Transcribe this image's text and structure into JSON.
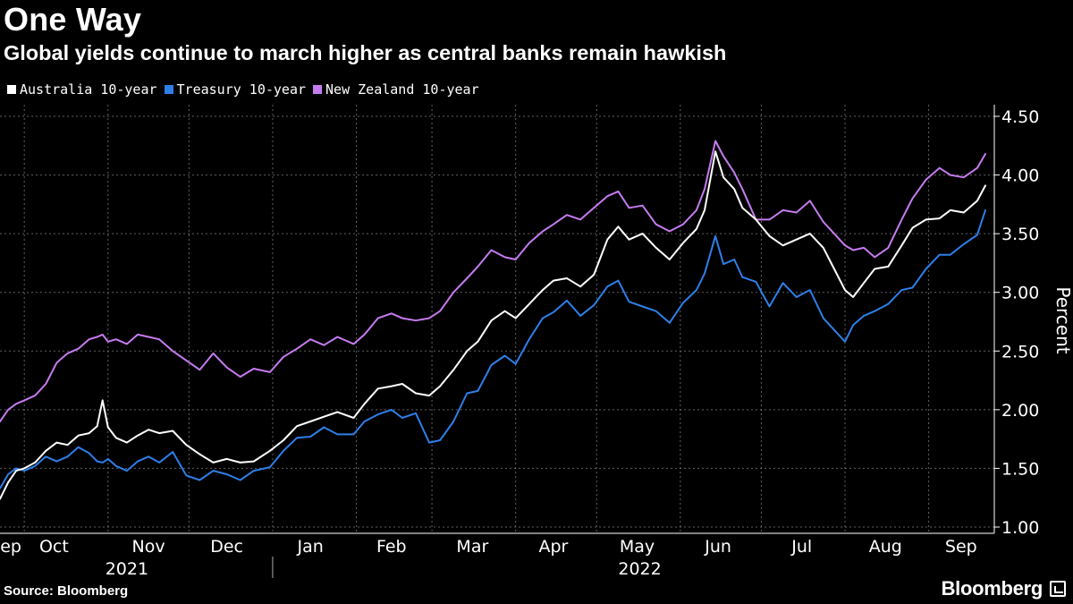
{
  "header": {
    "title": "One Way",
    "subtitle": "Global yields continue to march higher as central banks remain hawkish"
  },
  "footer": {
    "source": "Source: Bloomberg",
    "brand": "Bloomberg",
    "brand_icon": "bloomberg-terminal-icon"
  },
  "colors": {
    "background": "#000000",
    "australia": "#ffffff",
    "treasury": "#2e7fe8",
    "new_zealand": "#c67bf0",
    "grid": "#8a8a8a"
  },
  "chart_data": {
    "type": "line",
    "title": "One Way",
    "subtitle": "Global yields continue to march higher as central banks remain hawkish",
    "ylabel": "Percent",
    "xlabel": "",
    "ylim": [
      1.0,
      4.5
    ],
    "y_ticks": [
      "1.00",
      "1.50",
      "2.00",
      "2.50",
      "3.00",
      "3.50",
      "4.00",
      "4.50"
    ],
    "y_axis_side": "right",
    "grid": true,
    "legend_position": "top-left",
    "x_range": [
      "2021-09-22",
      "2022-09-22"
    ],
    "x_tick_labels": [
      "Sep",
      "Oct",
      "Nov",
      "Dec",
      "Jan",
      "Feb",
      "Mar",
      "Apr",
      "May",
      "Jun",
      "Jul",
      "Aug",
      "Sep"
    ],
    "x_year_labels": [
      {
        "label": "2021",
        "date": "2021-11-08"
      },
      {
        "label": "2022",
        "date": "2022-05-17"
      }
    ],
    "month_gridlines": [
      "2021-10-01",
      "2021-11-01",
      "2021-12-01",
      "2022-01-01",
      "2022-02-01",
      "2022-03-01",
      "2022-04-01",
      "2022-05-01",
      "2022-06-01",
      "2022-07-01",
      "2022-08-01",
      "2022-09-01"
    ],
    "x_tick_dates": [
      "2021-09-24",
      "2021-10-12",
      "2021-11-16",
      "2021-12-15",
      "2022-01-15",
      "2022-02-14",
      "2022-03-16",
      "2022-04-15",
      "2022-05-16",
      "2022-06-15",
      "2022-07-16",
      "2022-08-16",
      "2022-09-13"
    ],
    "year_divider_date": "2022-01-01",
    "series": [
      {
        "name": "Australia 10-year",
        "color": "#ffffff",
        "points": [
          [
            "2021-09-22",
            1.24
          ],
          [
            "2021-09-25",
            1.38
          ],
          [
            "2021-09-28",
            1.48
          ],
          [
            "2021-10-01",
            1.5
          ],
          [
            "2021-10-05",
            1.55
          ],
          [
            "2021-10-09",
            1.65
          ],
          [
            "2021-10-13",
            1.72
          ],
          [
            "2021-10-17",
            1.7
          ],
          [
            "2021-10-21",
            1.78
          ],
          [
            "2021-10-25",
            1.8
          ],
          [
            "2021-10-28",
            1.86
          ],
          [
            "2021-10-30",
            2.08
          ],
          [
            "2021-11-01",
            1.85
          ],
          [
            "2021-11-04",
            1.76
          ],
          [
            "2021-11-08",
            1.72
          ],
          [
            "2021-11-12",
            1.78
          ],
          [
            "2021-11-16",
            1.83
          ],
          [
            "2021-11-20",
            1.8
          ],
          [
            "2021-11-25",
            1.82
          ],
          [
            "2021-11-30",
            1.7
          ],
          [
            "2021-12-05",
            1.62
          ],
          [
            "2021-12-10",
            1.55
          ],
          [
            "2021-12-15",
            1.58
          ],
          [
            "2021-12-20",
            1.55
          ],
          [
            "2021-12-25",
            1.56
          ],
          [
            "2021-12-31",
            1.65
          ],
          [
            "2022-01-05",
            1.74
          ],
          [
            "2022-01-10",
            1.86
          ],
          [
            "2022-01-15",
            1.9
          ],
          [
            "2022-01-20",
            1.94
          ],
          [
            "2022-01-25",
            1.98
          ],
          [
            "2022-01-31",
            1.93
          ],
          [
            "2022-02-04",
            2.05
          ],
          [
            "2022-02-09",
            2.18
          ],
          [
            "2022-02-14",
            2.2
          ],
          [
            "2022-02-18",
            2.22
          ],
          [
            "2022-02-23",
            2.14
          ],
          [
            "2022-02-28",
            2.12
          ],
          [
            "2022-03-04",
            2.2
          ],
          [
            "2022-03-09",
            2.34
          ],
          [
            "2022-03-14",
            2.5
          ],
          [
            "2022-03-18",
            2.58
          ],
          [
            "2022-03-23",
            2.76
          ],
          [
            "2022-03-28",
            2.84
          ],
          [
            "2022-04-01",
            2.78
          ],
          [
            "2022-04-06",
            2.9
          ],
          [
            "2022-04-11",
            3.02
          ],
          [
            "2022-04-15",
            3.1
          ],
          [
            "2022-04-20",
            3.12
          ],
          [
            "2022-04-25",
            3.05
          ],
          [
            "2022-04-30",
            3.15
          ],
          [
            "2022-05-05",
            3.45
          ],
          [
            "2022-05-09",
            3.56
          ],
          [
            "2022-05-13",
            3.45
          ],
          [
            "2022-05-18",
            3.5
          ],
          [
            "2022-05-23",
            3.38
          ],
          [
            "2022-05-28",
            3.28
          ],
          [
            "2022-06-02",
            3.42
          ],
          [
            "2022-06-07",
            3.54
          ],
          [
            "2022-06-10",
            3.7
          ],
          [
            "2022-06-14",
            4.2
          ],
          [
            "2022-06-17",
            3.98
          ],
          [
            "2022-06-21",
            3.88
          ],
          [
            "2022-06-24",
            3.72
          ],
          [
            "2022-06-29",
            3.62
          ],
          [
            "2022-07-04",
            3.48
          ],
          [
            "2022-07-09",
            3.4
          ],
          [
            "2022-07-14",
            3.45
          ],
          [
            "2022-07-19",
            3.5
          ],
          [
            "2022-07-24",
            3.38
          ],
          [
            "2022-07-28",
            3.2
          ],
          [
            "2022-08-01",
            3.02
          ],
          [
            "2022-08-04",
            2.96
          ],
          [
            "2022-08-08",
            3.08
          ],
          [
            "2022-08-12",
            3.2
          ],
          [
            "2022-08-17",
            3.22
          ],
          [
            "2022-08-22",
            3.4
          ],
          [
            "2022-08-26",
            3.55
          ],
          [
            "2022-08-31",
            3.62
          ],
          [
            "2022-09-05",
            3.63
          ],
          [
            "2022-09-09",
            3.7
          ],
          [
            "2022-09-14",
            3.68
          ],
          [
            "2022-09-19",
            3.78
          ],
          [
            "2022-09-22",
            3.91
          ]
        ]
      },
      {
        "name": "Treasury 10-year",
        "color": "#2e7fe8",
        "points": [
          [
            "2021-09-22",
            1.33
          ],
          [
            "2021-09-25",
            1.45
          ],
          [
            "2021-09-28",
            1.5
          ],
          [
            "2021-10-01",
            1.48
          ],
          [
            "2021-10-05",
            1.52
          ],
          [
            "2021-10-09",
            1.6
          ],
          [
            "2021-10-13",
            1.56
          ],
          [
            "2021-10-17",
            1.6
          ],
          [
            "2021-10-21",
            1.68
          ],
          [
            "2021-10-25",
            1.63
          ],
          [
            "2021-10-28",
            1.56
          ],
          [
            "2021-10-30",
            1.55
          ],
          [
            "2021-11-01",
            1.58
          ],
          [
            "2021-11-04",
            1.52
          ],
          [
            "2021-11-08",
            1.48
          ],
          [
            "2021-11-12",
            1.56
          ],
          [
            "2021-11-16",
            1.6
          ],
          [
            "2021-11-20",
            1.55
          ],
          [
            "2021-11-25",
            1.64
          ],
          [
            "2021-11-30",
            1.44
          ],
          [
            "2021-12-05",
            1.4
          ],
          [
            "2021-12-10",
            1.48
          ],
          [
            "2021-12-15",
            1.45
          ],
          [
            "2021-12-20",
            1.4
          ],
          [
            "2021-12-25",
            1.48
          ],
          [
            "2021-12-31",
            1.51
          ],
          [
            "2022-01-05",
            1.65
          ],
          [
            "2022-01-10",
            1.76
          ],
          [
            "2022-01-15",
            1.77
          ],
          [
            "2022-01-20",
            1.85
          ],
          [
            "2022-01-25",
            1.79
          ],
          [
            "2022-01-31",
            1.79
          ],
          [
            "2022-02-04",
            1.9
          ],
          [
            "2022-02-09",
            1.96
          ],
          [
            "2022-02-14",
            2.0
          ],
          [
            "2022-02-18",
            1.93
          ],
          [
            "2022-02-23",
            1.97
          ],
          [
            "2022-02-28",
            1.72
          ],
          [
            "2022-03-04",
            1.74
          ],
          [
            "2022-03-09",
            1.9
          ],
          [
            "2022-03-14",
            2.14
          ],
          [
            "2022-03-18",
            2.16
          ],
          [
            "2022-03-23",
            2.38
          ],
          [
            "2022-03-28",
            2.46
          ],
          [
            "2022-04-01",
            2.39
          ],
          [
            "2022-04-06",
            2.6
          ],
          [
            "2022-04-11",
            2.78
          ],
          [
            "2022-04-15",
            2.83
          ],
          [
            "2022-04-20",
            2.93
          ],
          [
            "2022-04-25",
            2.8
          ],
          [
            "2022-04-30",
            2.89
          ],
          [
            "2022-05-05",
            3.05
          ],
          [
            "2022-05-09",
            3.1
          ],
          [
            "2022-05-13",
            2.92
          ],
          [
            "2022-05-18",
            2.88
          ],
          [
            "2022-05-23",
            2.84
          ],
          [
            "2022-05-28",
            2.74
          ],
          [
            "2022-06-02",
            2.91
          ],
          [
            "2022-06-07",
            3.02
          ],
          [
            "2022-06-10",
            3.16
          ],
          [
            "2022-06-14",
            3.48
          ],
          [
            "2022-06-17",
            3.24
          ],
          [
            "2022-06-21",
            3.28
          ],
          [
            "2022-06-24",
            3.13
          ],
          [
            "2022-06-29",
            3.09
          ],
          [
            "2022-07-04",
            2.88
          ],
          [
            "2022-07-09",
            3.08
          ],
          [
            "2022-07-14",
            2.96
          ],
          [
            "2022-07-19",
            3.02
          ],
          [
            "2022-07-24",
            2.78
          ],
          [
            "2022-07-28",
            2.68
          ],
          [
            "2022-08-01",
            2.58
          ],
          [
            "2022-08-04",
            2.72
          ],
          [
            "2022-08-08",
            2.8
          ],
          [
            "2022-08-12",
            2.84
          ],
          [
            "2022-08-17",
            2.9
          ],
          [
            "2022-08-22",
            3.02
          ],
          [
            "2022-08-26",
            3.04
          ],
          [
            "2022-08-31",
            3.2
          ],
          [
            "2022-09-05",
            3.32
          ],
          [
            "2022-09-09",
            3.32
          ],
          [
            "2022-09-14",
            3.41
          ],
          [
            "2022-09-19",
            3.49
          ],
          [
            "2022-09-22",
            3.7
          ]
        ]
      },
      {
        "name": "New Zealand 10-year",
        "color": "#c67bf0",
        "points": [
          [
            "2021-09-22",
            1.9
          ],
          [
            "2021-09-25",
            2.0
          ],
          [
            "2021-09-28",
            2.05
          ],
          [
            "2021-10-01",
            2.08
          ],
          [
            "2021-10-05",
            2.12
          ],
          [
            "2021-10-09",
            2.22
          ],
          [
            "2021-10-13",
            2.4
          ],
          [
            "2021-10-17",
            2.48
          ],
          [
            "2021-10-21",
            2.52
          ],
          [
            "2021-10-25",
            2.6
          ],
          [
            "2021-10-28",
            2.62
          ],
          [
            "2021-10-30",
            2.64
          ],
          [
            "2021-11-01",
            2.58
          ],
          [
            "2021-11-04",
            2.6
          ],
          [
            "2021-11-08",
            2.56
          ],
          [
            "2021-11-12",
            2.64
          ],
          [
            "2021-11-16",
            2.62
          ],
          [
            "2021-11-20",
            2.6
          ],
          [
            "2021-11-25",
            2.5
          ],
          [
            "2021-11-30",
            2.42
          ],
          [
            "2021-12-05",
            2.34
          ],
          [
            "2021-12-10",
            2.48
          ],
          [
            "2021-12-15",
            2.36
          ],
          [
            "2021-12-20",
            2.28
          ],
          [
            "2021-12-25",
            2.35
          ],
          [
            "2021-12-31",
            2.32
          ],
          [
            "2022-01-05",
            2.45
          ],
          [
            "2022-01-10",
            2.52
          ],
          [
            "2022-01-15",
            2.6
          ],
          [
            "2022-01-20",
            2.55
          ],
          [
            "2022-01-25",
            2.62
          ],
          [
            "2022-01-31",
            2.56
          ],
          [
            "2022-02-04",
            2.64
          ],
          [
            "2022-02-09",
            2.78
          ],
          [
            "2022-02-14",
            2.82
          ],
          [
            "2022-02-18",
            2.78
          ],
          [
            "2022-02-23",
            2.76
          ],
          [
            "2022-02-28",
            2.78
          ],
          [
            "2022-03-04",
            2.84
          ],
          [
            "2022-03-09",
            3.0
          ],
          [
            "2022-03-14",
            3.12
          ],
          [
            "2022-03-18",
            3.22
          ],
          [
            "2022-03-23",
            3.36
          ],
          [
            "2022-03-28",
            3.3
          ],
          [
            "2022-04-01",
            3.28
          ],
          [
            "2022-04-06",
            3.42
          ],
          [
            "2022-04-11",
            3.52
          ],
          [
            "2022-04-15",
            3.58
          ],
          [
            "2022-04-20",
            3.66
          ],
          [
            "2022-04-25",
            3.62
          ],
          [
            "2022-04-30",
            3.72
          ],
          [
            "2022-05-05",
            3.82
          ],
          [
            "2022-05-09",
            3.86
          ],
          [
            "2022-05-13",
            3.72
          ],
          [
            "2022-05-18",
            3.74
          ],
          [
            "2022-05-23",
            3.58
          ],
          [
            "2022-05-28",
            3.52
          ],
          [
            "2022-06-02",
            3.58
          ],
          [
            "2022-06-07",
            3.7
          ],
          [
            "2022-06-10",
            3.88
          ],
          [
            "2022-06-14",
            4.29
          ],
          [
            "2022-06-17",
            4.16
          ],
          [
            "2022-06-21",
            4.02
          ],
          [
            "2022-06-24",
            3.88
          ],
          [
            "2022-06-29",
            3.62
          ],
          [
            "2022-07-04",
            3.62
          ],
          [
            "2022-07-09",
            3.7
          ],
          [
            "2022-07-14",
            3.68
          ],
          [
            "2022-07-19",
            3.78
          ],
          [
            "2022-07-24",
            3.6
          ],
          [
            "2022-07-28",
            3.5
          ],
          [
            "2022-08-01",
            3.4
          ],
          [
            "2022-08-04",
            3.36
          ],
          [
            "2022-08-08",
            3.38
          ],
          [
            "2022-08-12",
            3.3
          ],
          [
            "2022-08-17",
            3.38
          ],
          [
            "2022-08-22",
            3.62
          ],
          [
            "2022-08-26",
            3.8
          ],
          [
            "2022-08-31",
            3.96
          ],
          [
            "2022-09-05",
            4.06
          ],
          [
            "2022-09-09",
            4.0
          ],
          [
            "2022-09-14",
            3.98
          ],
          [
            "2022-09-19",
            4.06
          ],
          [
            "2022-09-22",
            4.18
          ]
        ]
      }
    ]
  }
}
